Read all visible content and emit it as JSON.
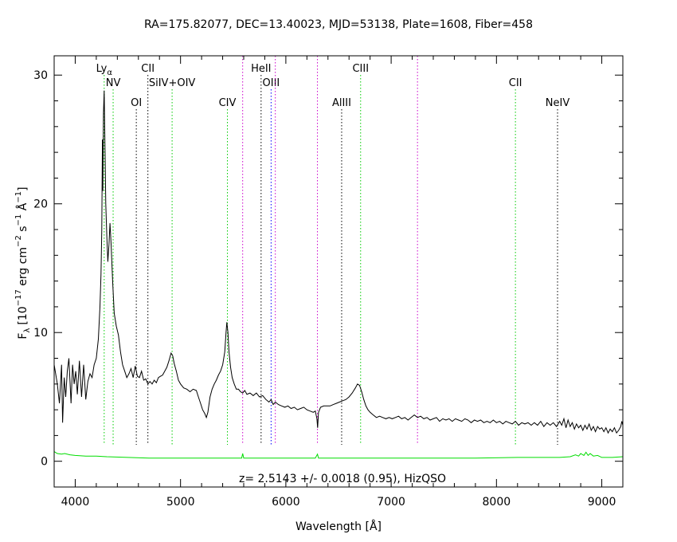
{
  "chart_data": {
    "type": "line",
    "title": "RA=175.82077, DEC=13.40023, MJD=53138, Plate=1608, Fiber=458",
    "xlabel": "Wavelength [Å]",
    "ylabel": "F",
    "ylabel_sub": "λ",
    "ylabel_rest": "[10",
    "ylabel_exp1": "−17",
    "ylabel_mid": " erg cm",
    "ylabel_exp2": "−2",
    "ylabel_mid2": " s",
    "ylabel_exp3": "−1",
    "ylabel_mid3": " Å",
    "ylabel_exp4": "−1",
    "ylabel_end": "]",
    "annotation": "z= 2.5143 +/- 0.0018 (0.95), HizQSO",
    "xlim": [
      3800,
      9200
    ],
    "ylim": [
      -2,
      31.5
    ],
    "xticks": [
      4000,
      5000,
      6000,
      7000,
      8000,
      9000
    ],
    "xtick_labels": [
      "4000",
      "5000",
      "6000",
      "7000",
      "8000",
      "9000"
    ],
    "yticks": [
      0,
      10,
      20,
      30
    ],
    "ytick_labels": [
      "0",
      "10",
      "20",
      "30"
    ],
    "series": [
      {
        "role": "flux",
        "color": "#000000",
        "points": [
          [
            3800,
            7.5
          ],
          [
            3830,
            6.0
          ],
          [
            3850,
            4.5
          ],
          [
            3870,
            7.5
          ],
          [
            3880,
            3.0
          ],
          [
            3895,
            6.5
          ],
          [
            3910,
            5.0
          ],
          [
            3925,
            7.0
          ],
          [
            3940,
            8.0
          ],
          [
            3960,
            4.5
          ],
          [
            3975,
            7.5
          ],
          [
            3990,
            6.0
          ],
          [
            4005,
            7.0
          ],
          [
            4020,
            5.2
          ],
          [
            4040,
            7.8
          ],
          [
            4060,
            5.0
          ],
          [
            4080,
            7.5
          ],
          [
            4100,
            4.8
          ],
          [
            4120,
            6.2
          ],
          [
            4140,
            6.8
          ],
          [
            4160,
            6.5
          ],
          [
            4180,
            7.5
          ],
          [
            4200,
            8.0
          ],
          [
            4220,
            9.5
          ],
          [
            4235,
            12.0
          ],
          [
            4245,
            14.5
          ],
          [
            4252,
            18.0
          ],
          [
            4258,
            25.0
          ],
          [
            4262,
            21.0
          ],
          [
            4268,
            27.0
          ],
          [
            4275,
            28.8
          ],
          [
            4283,
            24.0
          ],
          [
            4290,
            20.0
          ],
          [
            4300,
            17.5
          ],
          [
            4310,
            15.5
          ],
          [
            4320,
            16.8
          ],
          [
            4330,
            18.5
          ],
          [
            4340,
            17.0
          ],
          [
            4355,
            14.0
          ],
          [
            4370,
            11.5
          ],
          [
            4390,
            10.5
          ],
          [
            4410,
            9.8
          ],
          [
            4430,
            8.5
          ],
          [
            4450,
            7.5
          ],
          [
            4470,
            7.0
          ],
          [
            4490,
            6.5
          ],
          [
            4510,
            6.8
          ],
          [
            4530,
            7.2
          ],
          [
            4550,
            6.5
          ],
          [
            4570,
            7.4
          ],
          [
            4590,
            6.6
          ],
          [
            4610,
            6.5
          ],
          [
            4630,
            7.0
          ],
          [
            4650,
            6.3
          ],
          [
            4670,
            6.4
          ],
          [
            4690,
            6.0
          ],
          [
            4710,
            6.2
          ],
          [
            4730,
            6.0
          ],
          [
            4750,
            6.3
          ],
          [
            4770,
            6.1
          ],
          [
            4790,
            6.5
          ],
          [
            4810,
            6.6
          ],
          [
            4830,
            6.7
          ],
          [
            4850,
            7.0
          ],
          [
            4870,
            7.3
          ],
          [
            4890,
            7.8
          ],
          [
            4910,
            8.4
          ],
          [
            4925,
            8.2
          ],
          [
            4940,
            7.6
          ],
          [
            4960,
            7.0
          ],
          [
            4980,
            6.3
          ],
          [
            5000,
            6.0
          ],
          [
            5030,
            5.7
          ],
          [
            5060,
            5.6
          ],
          [
            5090,
            5.4
          ],
          [
            5120,
            5.6
          ],
          [
            5150,
            5.5
          ],
          [
            5170,
            5.0
          ],
          [
            5190,
            4.5
          ],
          [
            5210,
            4.0
          ],
          [
            5230,
            3.7
          ],
          [
            5245,
            3.4
          ],
          [
            5260,
            3.8
          ],
          [
            5280,
            5.0
          ],
          [
            5300,
            5.6
          ],
          [
            5320,
            6.0
          ],
          [
            5340,
            6.3
          ],
          [
            5360,
            6.7
          ],
          [
            5380,
            7.0
          ],
          [
            5400,
            7.5
          ],
          [
            5420,
            8.5
          ],
          [
            5432,
            10.0
          ],
          [
            5440,
            10.8
          ],
          [
            5450,
            10.0
          ],
          [
            5460,
            8.5
          ],
          [
            5475,
            7.3
          ],
          [
            5490,
            6.5
          ],
          [
            5510,
            6.0
          ],
          [
            5530,
            5.6
          ],
          [
            5550,
            5.6
          ],
          [
            5570,
            5.4
          ],
          [
            5590,
            5.3
          ],
          [
            5610,
            5.5
          ],
          [
            5630,
            5.2
          ],
          [
            5660,
            5.3
          ],
          [
            5690,
            5.1
          ],
          [
            5720,
            5.3
          ],
          [
            5750,
            5.0
          ],
          [
            5780,
            5.1
          ],
          [
            5810,
            4.8
          ],
          [
            5840,
            4.6
          ],
          [
            5860,
            4.8
          ],
          [
            5880,
            4.4
          ],
          [
            5900,
            4.6
          ],
          [
            5930,
            4.4
          ],
          [
            5960,
            4.3
          ],
          [
            5990,
            4.2
          ],
          [
            6020,
            4.3
          ],
          [
            6050,
            4.1
          ],
          [
            6080,
            4.2
          ],
          [
            6110,
            4.0
          ],
          [
            6140,
            4.1
          ],
          [
            6170,
            4.2
          ],
          [
            6200,
            4.0
          ],
          [
            6230,
            3.9
          ],
          [
            6260,
            3.8
          ],
          [
            6280,
            3.9
          ],
          [
            6295,
            3.3
          ],
          [
            6302,
            2.6
          ],
          [
            6310,
            3.8
          ],
          [
            6330,
            4.2
          ],
          [
            6360,
            4.3
          ],
          [
            6390,
            4.3
          ],
          [
            6420,
            4.3
          ],
          [
            6450,
            4.4
          ],
          [
            6480,
            4.5
          ],
          [
            6510,
            4.6
          ],
          [
            6540,
            4.7
          ],
          [
            6570,
            4.8
          ],
          [
            6600,
            5.0
          ],
          [
            6630,
            5.3
          ],
          [
            6660,
            5.7
          ],
          [
            6680,
            6.0
          ],
          [
            6700,
            5.9
          ],
          [
            6720,
            5.4
          ],
          [
            6740,
            4.8
          ],
          [
            6760,
            4.3
          ],
          [
            6780,
            4.0
          ],
          [
            6800,
            3.8
          ],
          [
            6830,
            3.6
          ],
          [
            6860,
            3.4
          ],
          [
            6890,
            3.5
          ],
          [
            6920,
            3.4
          ],
          [
            6950,
            3.3
          ],
          [
            6980,
            3.4
          ],
          [
            7010,
            3.3
          ],
          [
            7040,
            3.4
          ],
          [
            7070,
            3.5
          ],
          [
            7100,
            3.3
          ],
          [
            7130,
            3.4
          ],
          [
            7160,
            3.2
          ],
          [
            7190,
            3.4
          ],
          [
            7220,
            3.6
          ],
          [
            7250,
            3.4
          ],
          [
            7280,
            3.5
          ],
          [
            7310,
            3.3
          ],
          [
            7340,
            3.4
          ],
          [
            7370,
            3.2
          ],
          [
            7400,
            3.3
          ],
          [
            7430,
            3.4
          ],
          [
            7460,
            3.1
          ],
          [
            7490,
            3.3
          ],
          [
            7520,
            3.2
          ],
          [
            7550,
            3.3
          ],
          [
            7580,
            3.1
          ],
          [
            7610,
            3.3
          ],
          [
            7640,
            3.2
          ],
          [
            7670,
            3.1
          ],
          [
            7700,
            3.3
          ],
          [
            7730,
            3.2
          ],
          [
            7760,
            3.0
          ],
          [
            7790,
            3.2
          ],
          [
            7820,
            3.1
          ],
          [
            7850,
            3.2
          ],
          [
            7880,
            3.0
          ],
          [
            7910,
            3.1
          ],
          [
            7940,
            3.0
          ],
          [
            7970,
            3.2
          ],
          [
            8000,
            3.0
          ],
          [
            8030,
            3.1
          ],
          [
            8060,
            2.9
          ],
          [
            8090,
            3.1
          ],
          [
            8120,
            3.0
          ],
          [
            8150,
            2.9
          ],
          [
            8180,
            3.1
          ],
          [
            8210,
            2.8
          ],
          [
            8240,
            3.0
          ],
          [
            8270,
            2.9
          ],
          [
            8300,
            3.0
          ],
          [
            8330,
            2.8
          ],
          [
            8360,
            3.0
          ],
          [
            8390,
            2.8
          ],
          [
            8420,
            3.1
          ],
          [
            8450,
            2.7
          ],
          [
            8480,
            3.0
          ],
          [
            8510,
            2.8
          ],
          [
            8540,
            3.0
          ],
          [
            8570,
            2.7
          ],
          [
            8600,
            3.1
          ],
          [
            8620,
            2.8
          ],
          [
            8640,
            3.3
          ],
          [
            8660,
            2.6
          ],
          [
            8680,
            3.2
          ],
          [
            8700,
            2.7
          ],
          [
            8720,
            3.0
          ],
          [
            8740,
            2.5
          ],
          [
            8760,
            2.9
          ],
          [
            8780,
            2.6
          ],
          [
            8800,
            2.8
          ],
          [
            8820,
            2.4
          ],
          [
            8840,
            2.8
          ],
          [
            8860,
            2.5
          ],
          [
            8880,
            2.9
          ],
          [
            8900,
            2.4
          ],
          [
            8920,
            2.7
          ],
          [
            8940,
            2.3
          ],
          [
            8960,
            2.7
          ],
          [
            8980,
            2.5
          ],
          [
            9000,
            2.6
          ],
          [
            9020,
            2.3
          ],
          [
            9040,
            2.6
          ],
          [
            9060,
            2.2
          ],
          [
            9080,
            2.5
          ],
          [
            9100,
            2.3
          ],
          [
            9120,
            2.6
          ],
          [
            9140,
            2.2
          ],
          [
            9160,
            2.4
          ],
          [
            9180,
            2.7
          ],
          [
            9190,
            3.1
          ],
          [
            9200,
            2.8
          ]
        ]
      },
      {
        "role": "error",
        "color": "#00dd00",
        "points": [
          [
            3800,
            0.75
          ],
          [
            3830,
            0.6
          ],
          [
            3870,
            0.55
          ],
          [
            3900,
            0.6
          ],
          [
            3950,
            0.5
          ],
          [
            4000,
            0.45
          ],
          [
            4100,
            0.4
          ],
          [
            4200,
            0.4
          ],
          [
            4300,
            0.35
          ],
          [
            4500,
            0.3
          ],
          [
            4700,
            0.25
          ],
          [
            5000,
            0.25
          ],
          [
            5300,
            0.25
          ],
          [
            5580,
            0.25
          ],
          [
            5590,
            0.6
          ],
          [
            5600,
            0.25
          ],
          [
            5900,
            0.25
          ],
          [
            6280,
            0.25
          ],
          [
            6300,
            0.55
          ],
          [
            6310,
            0.25
          ],
          [
            6600,
            0.25
          ],
          [
            7000,
            0.25
          ],
          [
            7400,
            0.25
          ],
          [
            7800,
            0.25
          ],
          [
            8200,
            0.3
          ],
          [
            8600,
            0.3
          ],
          [
            8700,
            0.35
          ],
          [
            8750,
            0.5
          ],
          [
            8780,
            0.4
          ],
          [
            8800,
            0.6
          ],
          [
            8830,
            0.45
          ],
          [
            8850,
            0.7
          ],
          [
            8870,
            0.45
          ],
          [
            8890,
            0.6
          ],
          [
            8920,
            0.4
          ],
          [
            8960,
            0.45
          ],
          [
            9000,
            0.3
          ],
          [
            9100,
            0.3
          ],
          [
            9200,
            0.35
          ]
        ]
      }
    ],
    "lines": [
      {
        "label": "Ly",
        "sub": "α",
        "x": 4275,
        "color": "#00cc00",
        "row": 0
      },
      {
        "label": "NV",
        "x": 4360,
        "color": "#00cc00",
        "row": 1
      },
      {
        "label": "OI",
        "x": 4580,
        "color": "#000000",
        "row": 2
      },
      {
        "label": "CII",
        "x": 4690,
        "color": "#000000",
        "row": 0
      },
      {
        "label": "SiIV+OIV",
        "x": 4920,
        "color": "#00cc00",
        "row": 1
      },
      {
        "label": "CIV",
        "x": 5445,
        "color": "#00cc00",
        "row": 2
      },
      {
        "label": "HeII",
        "x": 5765,
        "color": "#000000",
        "row": 0
      },
      {
        "label": "OIII",
        "x": 5860,
        "color": "#0000ff",
        "row": 1
      },
      {
        "label": "",
        "x": 5590,
        "color": "#cc00cc",
        "row": -1
      },
      {
        "label": "",
        "x": 5900,
        "color": "#cc00cc",
        "row": -1
      },
      {
        "label": "",
        "x": 6300,
        "color": "#cc00cc",
        "row": -1
      },
      {
        "label": "AlIII",
        "x": 6530,
        "color": "#000000",
        "row": 2
      },
      {
        "label": "CIII",
        "x": 6710,
        "color": "#00cc00",
        "row": 0
      },
      {
        "label": "",
        "x": 7250,
        "color": "#cc00cc",
        "row": -1
      },
      {
        "label": "CII",
        "x": 8180,
        "color": "#00cc00",
        "row": 1
      },
      {
        "label": "NeIV",
        "x": 8580,
        "color": "#000000",
        "row": 2
      }
    ]
  }
}
